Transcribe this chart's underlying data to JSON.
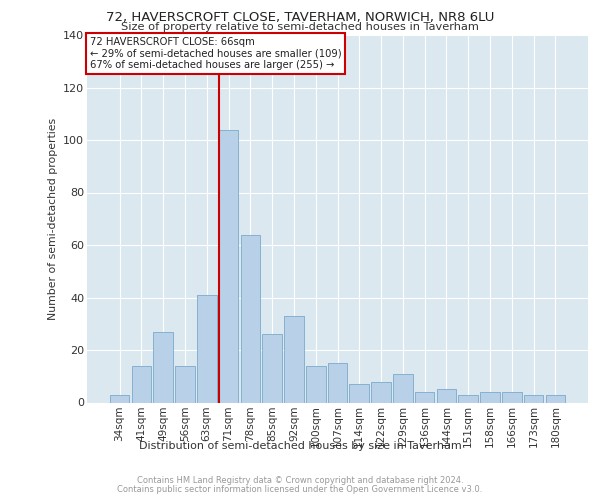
{
  "title": "72, HAVERSCROFT CLOSE, TAVERHAM, NORWICH, NR8 6LU",
  "subtitle": "Size of property relative to semi-detached houses in Taverham",
  "xlabel": "Distribution of semi-detached houses by size in Taverham",
  "ylabel": "Number of semi-detached properties",
  "categories": [
    "34sqm",
    "41sqm",
    "49sqm",
    "56sqm",
    "63sqm",
    "71sqm",
    "78sqm",
    "85sqm",
    "92sqm",
    "100sqm",
    "107sqm",
    "114sqm",
    "122sqm",
    "129sqm",
    "136sqm",
    "144sqm",
    "151sqm",
    "158sqm",
    "166sqm",
    "173sqm",
    "180sqm"
  ],
  "values": [
    3,
    14,
    27,
    14,
    41,
    104,
    64,
    26,
    33,
    14,
    15,
    7,
    8,
    11,
    4,
    5,
    3,
    4,
    4,
    3,
    3
  ],
  "bar_color": "#b8d0e8",
  "bar_edge_color": "#7aaaca",
  "property_label": "72 HAVERSCROFT CLOSE: 66sqm",
  "annotation_line1": "← 29% of semi-detached houses are smaller (109)",
  "annotation_line2": "67% of semi-detached houses are larger (255) →",
  "vline_color": "#cc0000",
  "annotation_box_edge": "#cc0000",
  "background_color": "#ffffff",
  "plot_background": "#dce8f0",
  "grid_color": "#ffffff",
  "ylim": [
    0,
    140
  ],
  "yticks": [
    0,
    20,
    40,
    60,
    80,
    100,
    120,
    140
  ],
  "footer1": "Contains HM Land Registry data © Crown copyright and database right 2024.",
  "footer2": "Contains public sector information licensed under the Open Government Licence v3.0."
}
